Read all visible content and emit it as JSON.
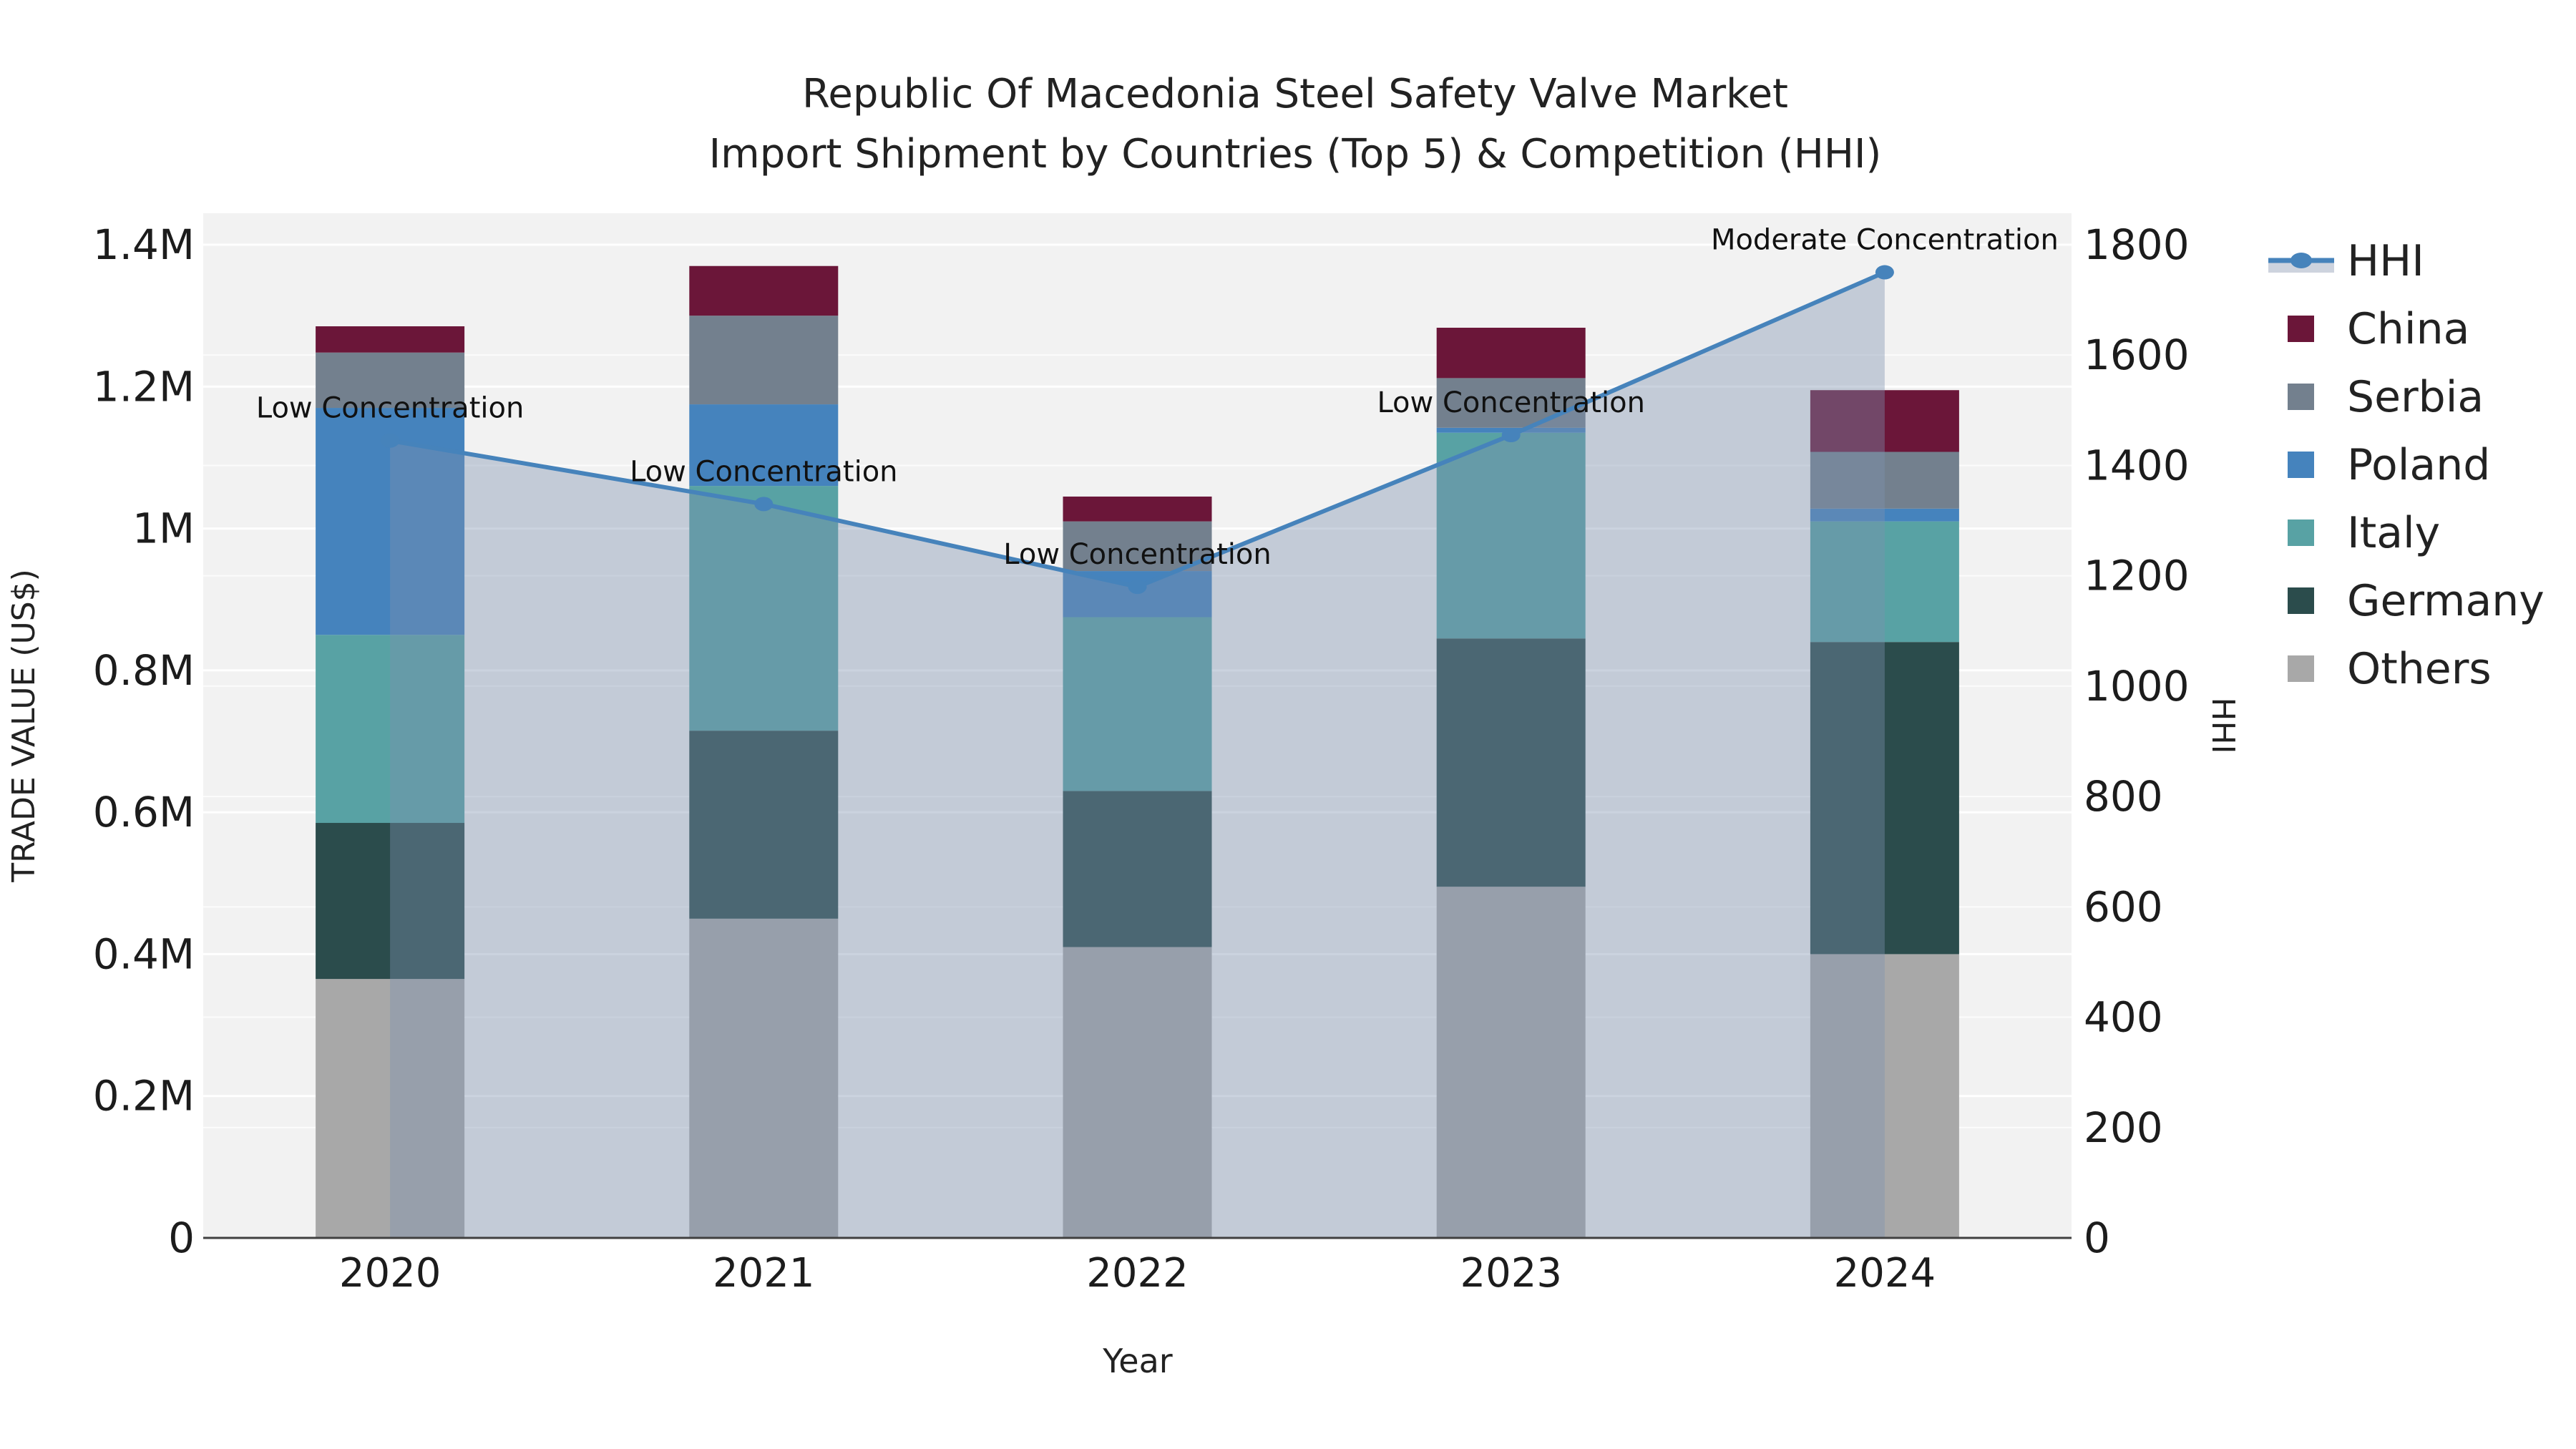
{
  "title": {
    "line1": "Republic Of Macedonia Steel Safety Valve Market",
    "line2": "Import Shipment by Countries (Top 5) & Competition (HHI)"
  },
  "axes": {
    "x": {
      "title": "Year",
      "labels": [
        "2020",
        "2021",
        "2022",
        "2023",
        "2024"
      ]
    },
    "y_left": {
      "title": "TRADE VALUE (US$)",
      "tick_labels": [
        "0",
        "0.2M",
        "0.4M",
        "0.6M",
        "0.8M",
        "1M",
        "1.2M",
        "1.4M"
      ],
      "max": 1400000
    },
    "y_right": {
      "title": "HHI",
      "tick_labels": [
        "0",
        "200",
        "400",
        "600",
        "800",
        "1000",
        "1200",
        "1400",
        "1600",
        "1800"
      ],
      "max": 1800
    }
  },
  "legend": {
    "items": [
      {
        "label": "HHI",
        "type": "line",
        "color": "#4683bb"
      },
      {
        "label": "China",
        "type": "box",
        "color": "#6b1639"
      },
      {
        "label": "Serbia",
        "type": "box",
        "color": "#73808e"
      },
      {
        "label": "Poland",
        "type": "box",
        "color": "#4583bd"
      },
      {
        "label": "Italy",
        "type": "box",
        "color": "#58a2a4"
      },
      {
        "label": "Germany",
        "type": "box",
        "color": "#2b4c4c"
      },
      {
        "label": "Others",
        "type": "box",
        "color": "#a8a8a8"
      }
    ]
  },
  "colors": {
    "plot_bg": "#f2f2f2",
    "grid": "#ffffff",
    "axis_line": "#404040",
    "text": "#1c1c1c",
    "hhi_line": "#4683bb",
    "hhi_area": "rgba(125,145,175,0.40)",
    "legend_band": "#cdd3de"
  },
  "chart_data": {
    "type": "combo_stacked_bar_line",
    "categories": [
      "2020",
      "2021",
      "2022",
      "2023",
      "2024"
    ],
    "bar_unit": "US$ trade value",
    "series": [
      {
        "name": "Others",
        "color": "#a8a8a8",
        "values": [
          365000,
          450000,
          410000,
          495000,
          400000
        ]
      },
      {
        "name": "Germany",
        "color": "#2b4c4c",
        "values": [
          220000,
          265000,
          220000,
          350000,
          440000
        ]
      },
      {
        "name": "Italy",
        "color": "#58a2a4",
        "values": [
          265000,
          345000,
          245000,
          290000,
          170000
        ]
      },
      {
        "name": "Poland",
        "color": "#4583bd",
        "values": [
          320000,
          115000,
          65000,
          7000,
          18000
        ]
      },
      {
        "name": "Serbia",
        "color": "#73808e",
        "values": [
          78000,
          125000,
          70000,
          70000,
          80000
        ]
      },
      {
        "name": "China",
        "color": "#6b1639",
        "values": [
          37000,
          70000,
          35000,
          71000,
          87000
        ]
      }
    ],
    "bar_totals": [
      1285000,
      1370000,
      1045000,
      1283000,
      1195000
    ],
    "line_series": {
      "name": "HHI",
      "axis": "right",
      "color": "#4683bb",
      "area_fill": "rgba(125,145,175,0.40)",
      "values": [
        1445,
        1330,
        1180,
        1455,
        1750
      ]
    },
    "annotations": [
      {
        "category": "2020",
        "text": "Low Concentration"
      },
      {
        "category": "2021",
        "text": "Low Concentration"
      },
      {
        "category": "2022",
        "text": "Low Concentration"
      },
      {
        "category": "2023",
        "text": "Low Concentration"
      },
      {
        "category": "2024",
        "text": "Moderate Concentration"
      }
    ],
    "ylim_left": [
      0,
      1400000
    ],
    "ylim_right": [
      0,
      1800
    ],
    "grid": true,
    "legend_position": "right"
  }
}
